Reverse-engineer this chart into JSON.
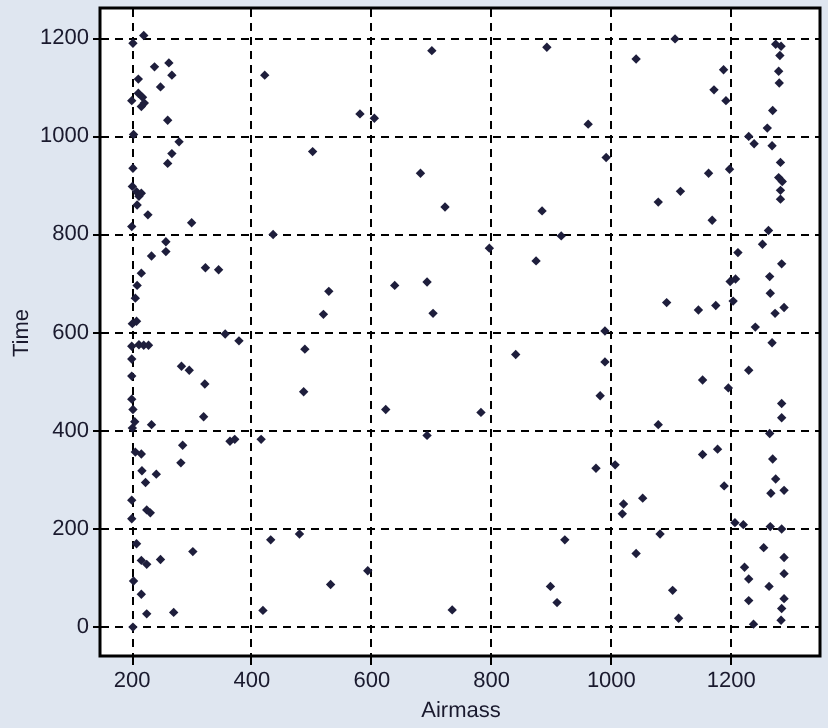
{
  "chart_data": {
    "type": "scatter",
    "xlabel": "Airmass",
    "ylabel": "Time",
    "xlim": [
      148,
      1350
    ],
    "ylim": [
      -62,
      1260
    ],
    "xticks": [
      200,
      400,
      600,
      800,
      1000,
      1200
    ],
    "yticks": [
      0,
      200,
      400,
      600,
      800,
      1000,
      1200
    ],
    "grid": true,
    "marker": "diamond",
    "series": [
      {
        "color": "#1e1e3c",
        "x": [
          221,
          203,
          239,
          263,
          268,
          249,
          212,
          201,
          212,
          219,
          217,
          222,
          261,
          204,
          280,
          268,
          261,
          203,
          202,
          209,
          213,
          217,
          210,
          228,
          201,
          301,
          258,
          258,
          234,
          324,
          346,
          217,
          210,
          207,
          202,
          209,
          201,
          213,
          221,
          229,
          201,
          201,
          201,
          203,
          206,
          202,
          234,
          284,
          297,
          323,
          321,
          207,
          217,
          218,
          224,
          226,
          232,
          201,
          201,
          209,
          217,
          226,
          249,
          303,
          204,
          217,
          226,
          271,
          203,
          242,
          286,
          283,
          357,
          380,
          365,
          373,
          417,
          423,
          437,
          433,
          481,
          488,
          420,
          490,
          503,
          530,
          521,
          533,
          582,
          606,
          595,
          625,
          640,
          683,
          694,
          702,
          704,
          724,
          694,
          736,
          784,
          798,
          842,
          876,
          886,
          894,
          918,
          924,
          900,
          911,
          963,
          993,
          991,
          991,
          983,
          976,
          1008,
          1022,
          1020,
          1054,
          1043,
          1043,
          1080,
          1080,
          1083,
          1108,
          1117,
          1094,
          1104,
          1114,
          1147,
          1154,
          1154,
          1164,
          1170,
          1173,
          1176,
          1179,
          1189,
          1193,
          1199,
          1197,
          1190,
          1200,
          1209,
          1205,
          1213,
          1208,
          1222,
          1224,
          1231,
          1231,
          1231,
          1231,
          1240,
          1242,
          1239,
          1254,
          1256,
          1262,
          1264,
          1266,
          1267,
          1266,
          1267,
          1265,
          1270,
          1271,
          1268,
          1270,
          1275,
          1271,
          1276,
          1276,
          1285,
          1283,
          1281,
          1282,
          1284,
          1281,
          1287,
          1284,
          1284,
          1286,
          1290,
          1286,
          1286,
          1290,
          1286,
          1290,
          1290,
          1290,
          1286,
          1285
        ],
        "values": [
          1204,
          1188,
          1140,
          1148,
          1123,
          1099,
          1115,
          1071,
          1086,
          1078,
          1059,
          1066,
          1031,
          1002,
          987,
          963,
          943,
          933,
          896,
          885,
          876,
          882,
          858,
          838,
          814,
          822,
          783,
          763,
          754,
          730,
          726,
          719,
          694,
          668,
          616,
          621,
          570,
          573,
          572,
          572,
          544,
          509,
          462,
          441,
          416,
          403,
          410,
          529,
          521,
          493,
          426,
          354,
          350,
          316,
          292,
          236,
          230,
          256,
          218,
          167,
          133,
          125,
          135,
          151,
          91,
          64,
          24,
          27,
          -3,
          309,
          368,
          332,
          595,
          581,
          376,
          380,
          380,
          1123,
          798,
          175,
          187,
          477,
          31,
          564,
          967,
          682,
          635,
          84,
          1044,
          1035,
          112,
          441,
          694,
          923,
          701,
          1173,
          637,
          854,
          388,
          32,
          435,
          770,
          553,
          744,
          846,
          1180,
          795,
          175,
          80,
          47,
          1023,
          955,
          601,
          538,
          469,
          321,
          328,
          248,
          228,
          260,
          1156,
          147,
          864,
          410,
          187,
          1197,
          886,
          659,
          72,
          15,
          644,
          501,
          349,
          923,
          827,
          1093,
          653,
          360,
          1134,
          1071,
          931,
          485,
          285,
          702,
          707,
          662,
          761,
          210,
          206,
          119,
          95,
          51,
          521,
          998,
          983,
          609,
          3,
          778,
          159,
          1015,
          806,
          712,
          678,
          392,
          202,
          80,
          979,
          1051,
          270,
          577,
          637,
          340,
          299,
          1186,
          1182,
          1163,
          1131,
          1107,
          945,
          914,
          906,
          888,
          870,
          738,
          649,
          453,
          424,
          276,
          197,
          139,
          106,
          55,
          35,
          11
        ]
      }
    ]
  }
}
